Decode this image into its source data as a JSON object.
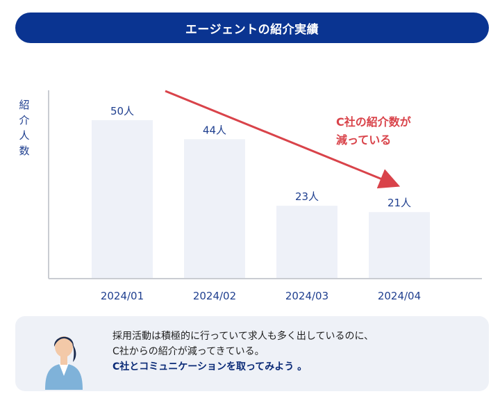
{
  "banner": {
    "title": "エージェントの紹介実績"
  },
  "chart_data": {
    "type": "bar",
    "ylabel": "紹介人数",
    "categories": [
      "2024/01",
      "2024/02",
      "2024/03",
      "2024/04"
    ],
    "values": [
      50,
      44,
      23,
      21
    ],
    "value_labels": [
      "50人",
      "44人",
      "23人",
      "21人"
    ],
    "ylim": [
      0,
      60
    ],
    "grid": false,
    "bar_color": "#eef1f8",
    "annotation": {
      "line1": "C社の紹介数が",
      "line2": "減っている",
      "color": "#d9434a",
      "arrow": "downward trend arrow"
    }
  },
  "note": {
    "line1": "採用活動は積極的に行っていて求人も多く出しているのに、",
    "line2": "C社からの紹介が減ってきている。",
    "line3": "C社とコミュニケーションを取ってみよう 。"
  },
  "colors": {
    "navy": "#0a3491",
    "red": "#d9434a",
    "panel": "#eef1f7"
  },
  "icons": {
    "person": "person-illustration"
  }
}
